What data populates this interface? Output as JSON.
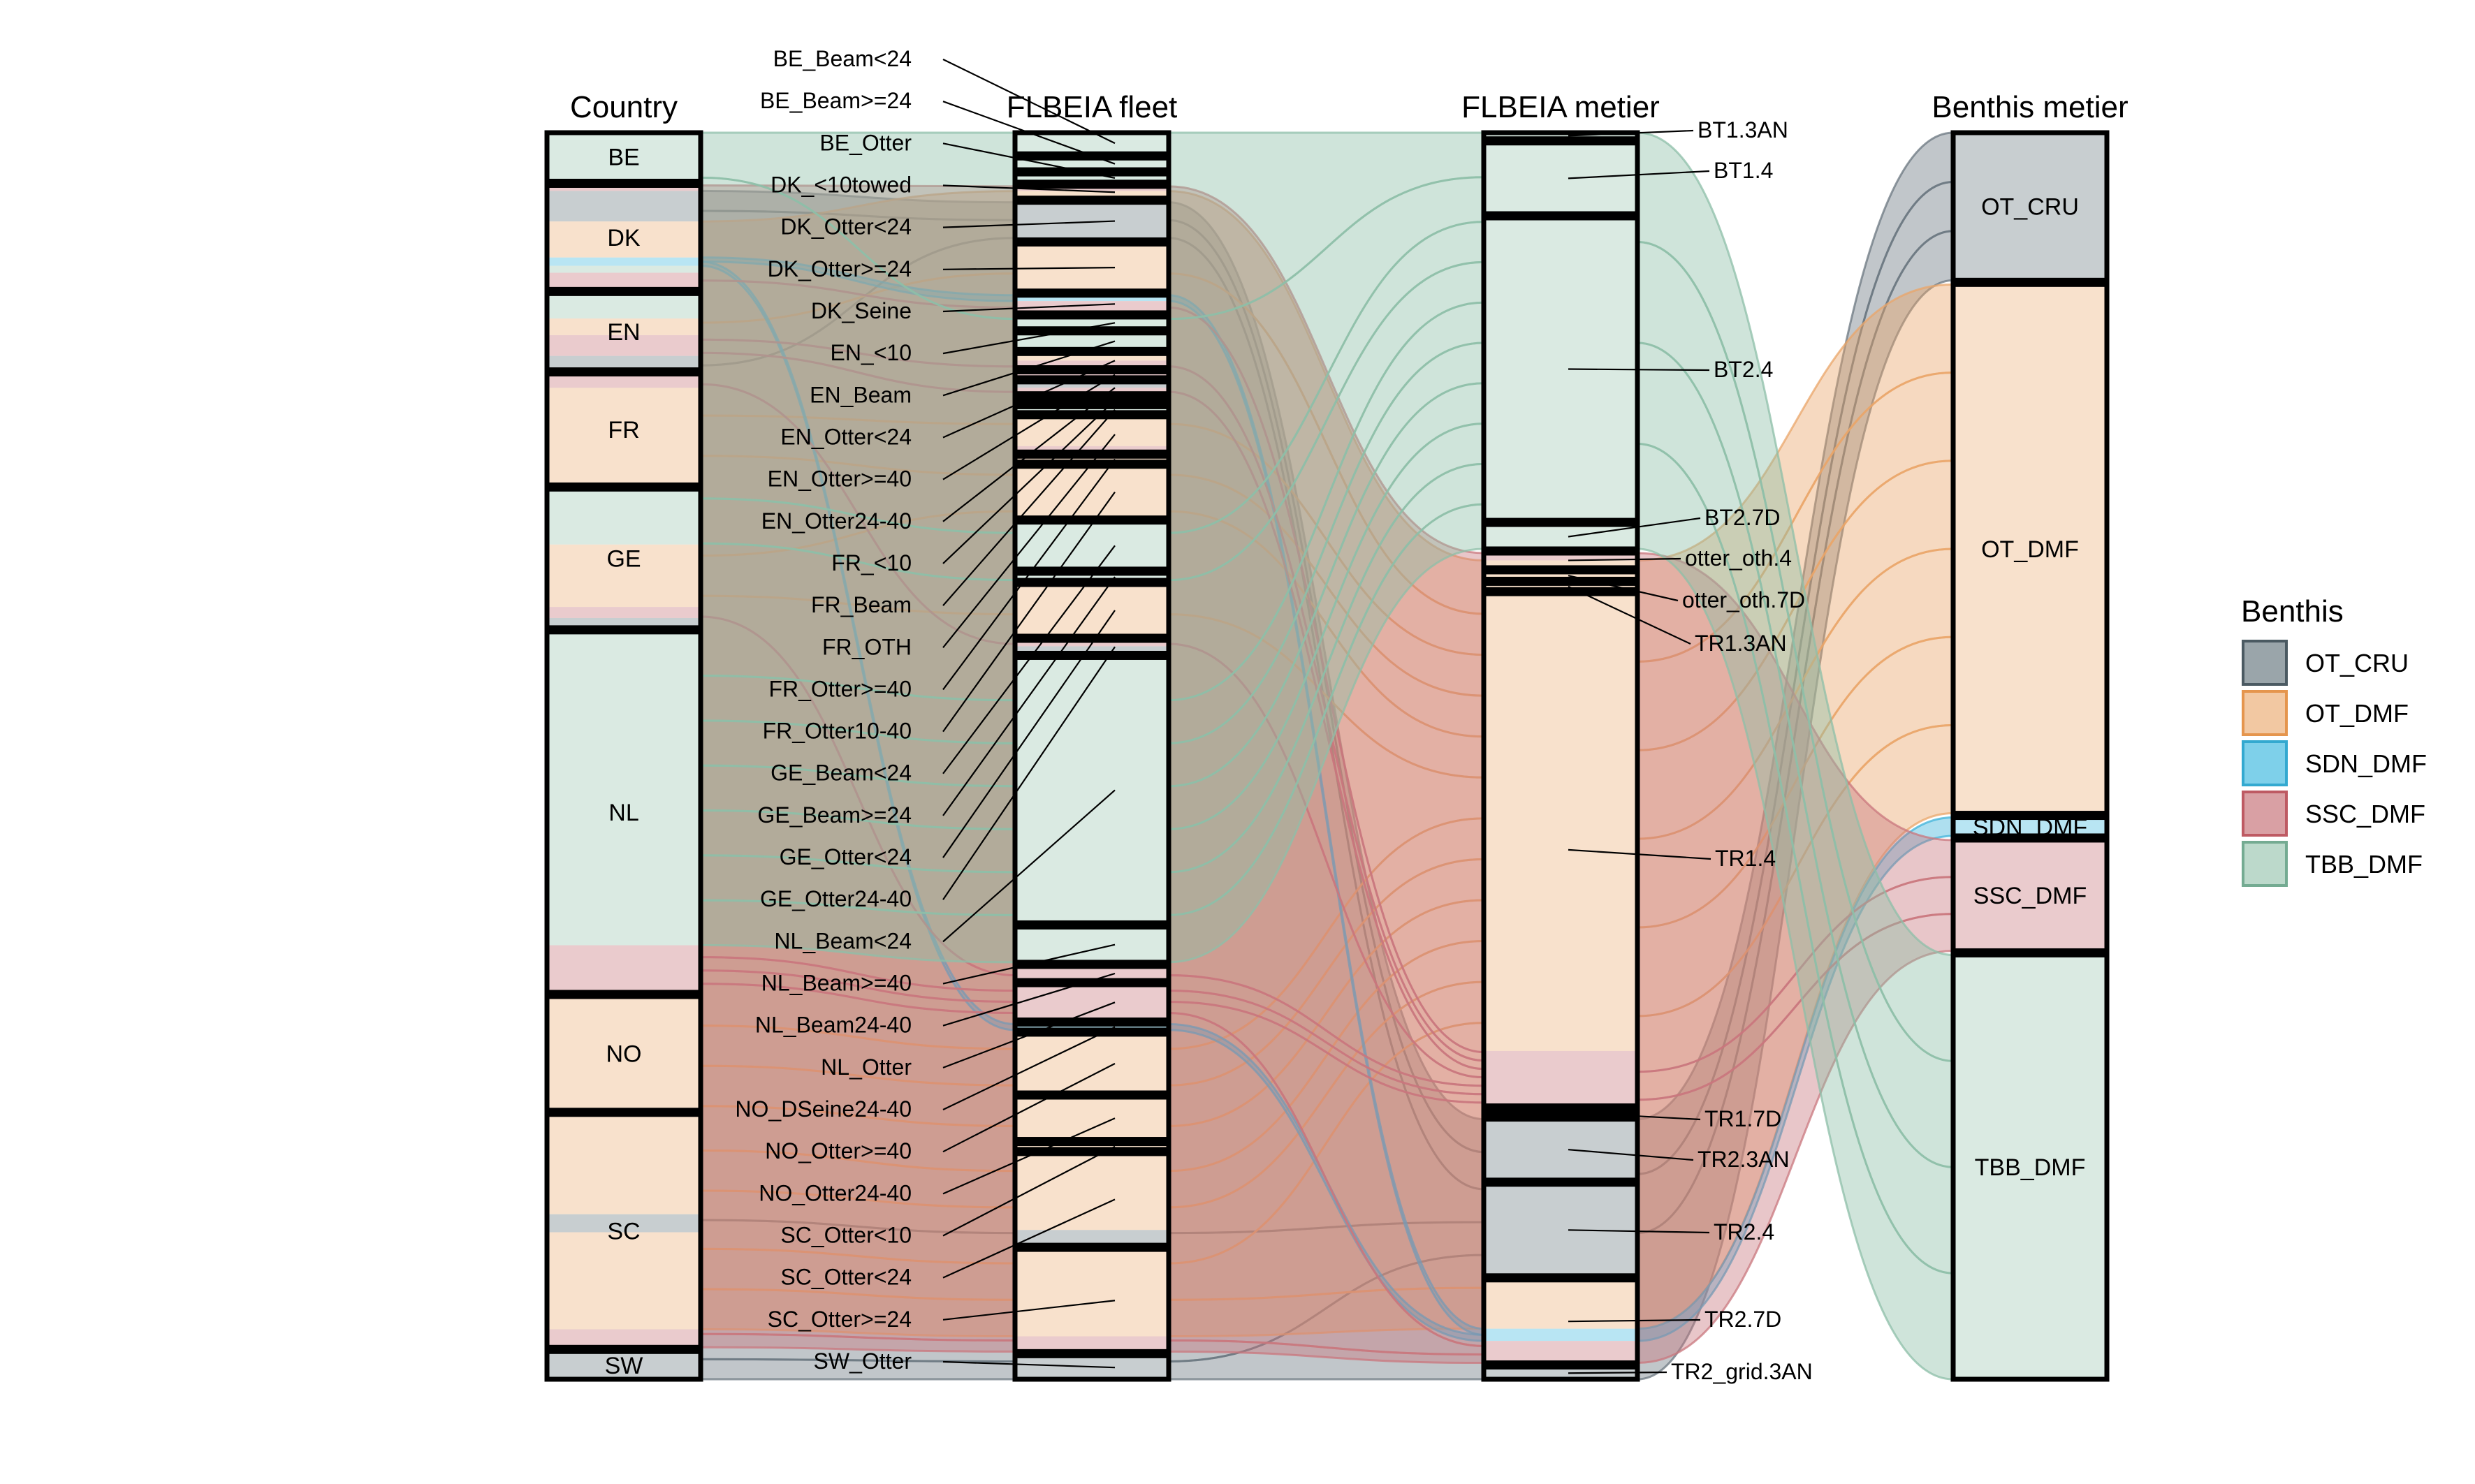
{
  "chart_data": {
    "type": "alluvial",
    "axes": [
      "Country",
      "FLBEIA fleet",
      "FLBEIA metier",
      "Benthis metier"
    ],
    "legend": {
      "title": "Benthis",
      "items": [
        {
          "name": "OT_CRU",
          "fill": "#9AA5AA",
          "stroke": "#4B5A62"
        },
        {
          "name": "OT_DMF",
          "fill": "#F2C8A2",
          "stroke": "#E5954D"
        },
        {
          "name": "SDN_DMF",
          "fill": "#7ED0EA",
          "stroke": "#33A9D0"
        },
        {
          "name": "SSC_DMF",
          "fill": "#D9A0A4",
          "stroke": "#BE5A63"
        },
        {
          "name": "TBB_DMF",
          "fill": "#BCD9CB",
          "stroke": "#74AB92"
        }
      ],
      "placement": "right"
    },
    "colors": {
      "OT_CRU": "#6B7780",
      "OT_DMF": "#E9A56A",
      "SDN_DMF": "#3FB3DA",
      "SSC_DMF": "#C9777E",
      "TBB_DMF": "#8DBFA8"
    },
    "strata": {
      "Country": [
        {
          "label": "BE",
          "size": 3.5,
          "mix": {
            "TBB_DMF": 3.5
          }
        },
        {
          "label": "DK",
          "size": 7.5,
          "mix": {
            "SSC_DMF": 0.4,
            "OT_CRU": 2.2,
            "OT_DMF": 2.6,
            "SDN_DMF": 0.6,
            "TBB_DMF": 0.5,
            "SSC_DMF_b": 1.2
          }
        },
        {
          "label": "EN",
          "size": 5.5,
          "mix": {
            "TBB_DMF": 1.8,
            "OT_DMF": 1.2,
            "SSC_DMF": 1.5,
            "OT_CRU": 1.0
          }
        },
        {
          "label": "FR",
          "size": 8.0,
          "mix": {
            "SSC_DMF": 1.0,
            "OT_DMF": 7.0
          }
        },
        {
          "label": "GE",
          "size": 10.0,
          "mix": {
            "TBB_DMF": 4.0,
            "OT_DMF": 4.5,
            "SSC_DMF": 0.8,
            "OT_CRU": 0.7
          }
        },
        {
          "label": "NL",
          "size": 26.0,
          "mix": {
            "TBB_DMF": 22.6,
            "SSC_DMF": 3.4
          }
        },
        {
          "label": "NO",
          "size": 8.2,
          "mix": {
            "OT_DMF": 8.2
          }
        },
        {
          "label": "SC",
          "size": 16.8,
          "mix": {
            "OT_DMF": 7.2,
            "OT_CRU": 1.3,
            "OT_DMF_b": 7.0,
            "SSC_DMF": 1.3
          }
        },
        {
          "label": "SW",
          "size": 2.0,
          "mix": {
            "OT_CRU": 2.0
          }
        }
      ],
      "FLBEIA fleet": [
        {
          "label": "BE_Beam<24",
          "size": 1.8,
          "mix": {
            "TBB_DMF": 1.8
          }
        },
        {
          "label": "BE_Beam>=24",
          "size": 1.0,
          "mix": {
            "TBB_DMF": 1.0
          }
        },
        {
          "label": "BE_Otter",
          "size": 0.7,
          "mix": {
            "TBB_DMF": 0.7
          }
        },
        {
          "label": "DK_<10towed",
          "size": 1.0,
          "mix": {
            "SSC_DMF": 0.4,
            "OT_DMF": 0.6
          }
        },
        {
          "label": "DK_Otter<24",
          "size": 3.2,
          "mix": {
            "OT_CRU": 3.2
          }
        },
        {
          "label": "DK_Otter>=24",
          "size": 4.0,
          "mix": {
            "OT_DMF": 4.0
          }
        },
        {
          "label": "DK_Seine",
          "size": 1.5,
          "mix": {
            "SDN_DMF": 0.5,
            "SSC_DMF": 1.0
          }
        },
        {
          "label": "EN_<10",
          "size": 1.0,
          "mix": {
            "TBB_DMF": 1.0
          }
        },
        {
          "label": "EN_Beam",
          "size": 1.4,
          "mix": {
            "TBB_DMF": 1.4
          }
        },
        {
          "label": "EN_Otter<24",
          "size": 1.2,
          "mix": {
            "OT_DMF": 0.6,
            "SSC_DMF": 0.6
          }
        },
        {
          "label": "EN_Otter>=40",
          "size": 0.5,
          "mix": {
            "SSC_DMF": 0.5
          }
        },
        {
          "label": "EN_Otter24-40",
          "size": 1.0,
          "mix": {
            "OT_CRU": 0.5,
            "SSC_DMF": 0.5
          }
        },
        {
          "label": "FR_<10",
          "size": 0.4,
          "mix": {
            "OT_DMF": 0.4
          }
        },
        {
          "label": "FR_Beam",
          "size": 0.5,
          "mix": {
            "TBB_DMF": 0.5
          }
        },
        {
          "label": "FR_OTH",
          "size": 3.0,
          "mix": {
            "OT_DMF": 2.5,
            "SSC_DMF": 0.5
          }
        },
        {
          "label": "FR_Otter>=40",
          "size": 0.5,
          "mix": {
            "OT_DMF": 0.5
          }
        },
        {
          "label": "FR_Otter10-40",
          "size": 4.4,
          "mix": {
            "OT_DMF": 4.4
          }
        },
        {
          "label": "GE_Beam<24",
          "size": 4.0,
          "mix": {
            "TBB_DMF": 4.0
          }
        },
        {
          "label": "GE_Beam>=24",
          "size": 0.6,
          "mix": {
            "TBB_DMF": 0.6
          }
        },
        {
          "label": "GE_Otter<24",
          "size": 4.4,
          "mix": {
            "OT_DMF": 4.4
          }
        },
        {
          "label": "GE_Otter24-40",
          "size": 1.1,
          "mix": {
            "SSC_DMF": 0.5,
            "OT_CRU": 0.6
          }
        },
        {
          "label": "NL_Beam<24",
          "size": 22.6,
          "mix": {
            "TBB_DMF": 22.6
          }
        },
        {
          "label": "NL_Beam>=40",
          "size": 3.0,
          "mix": {
            "TBB_DMF": 3.0
          }
        },
        {
          "label": "NL_Beam24-40",
          "size": 1.2,
          "mix": {
            "SSC_DMF": 1.2
          }
        },
        {
          "label": "NL_Otter",
          "size": 3.0,
          "mix": {
            "SSC_DMF": 3.0
          }
        },
        {
          "label": "NO_DSeine24-40",
          "size": 0.5,
          "mix": {
            "SDN_DMF": 0.5
          }
        },
        {
          "label": "NO_Otter>=40",
          "size": 5.0,
          "mix": {
            "OT_DMF": 5.0
          }
        },
        {
          "label": "NO_Otter24-40",
          "size": 3.6,
          "mix": {
            "OT_DMF": 3.6
          }
        },
        {
          "label": "SC_Otter<10",
          "size": 0.5,
          "mix": {
            "OT_DMF": 0.5
          }
        },
        {
          "label": "SC_Otter<24",
          "size": 7.8,
          "mix": {
            "OT_DMF": 6.5,
            "OT_CRU": 1.3
          }
        },
        {
          "label": "SC_Otter>=24",
          "size": 8.7,
          "mix": {
            "OT_DMF": 7.4,
            "SSC_DMF": 1.3
          }
        },
        {
          "label": "SW_Otter",
          "size": 2.0,
          "mix": {
            "OT_CRU": 2.0
          }
        }
      ],
      "FLBEIA metier": [
        {
          "label": "BT1.3AN",
          "size": 0.5,
          "mix": {
            "TBB_DMF": 0.5
          }
        },
        {
          "label": "BT1.4",
          "size": 5.8,
          "mix": {
            "TBB_DMF": 5.8
          }
        },
        {
          "label": "BT2.4",
          "size": 24.8,
          "mix": {
            "TBB_DMF": 24.8
          }
        },
        {
          "label": "BT2.7D",
          "size": 2.0,
          "mix": {
            "TBB_DMF": 2.0
          }
        },
        {
          "label": "otter_oth.4",
          "size": 1.2,
          "mix": {
            "SSC_DMF": 0.6,
            "OT_DMF": 0.6
          }
        },
        {
          "label": "otter_oth.7D",
          "size": 0.6,
          "mix": {
            "OT_DMF": 0.6
          }
        },
        {
          "label": "TR1.3AN",
          "size": 0.5,
          "mix": {
            "OT_DMF": 0.5
          }
        },
        {
          "label": "TR1.4",
          "size": 42.0,
          "mix": {
            "OT_DMF": 37.5,
            "SSC_DMF": 4.5
          }
        },
        {
          "label": "TR1.7D",
          "size": 0.4,
          "mix": {
            "OT_DMF": 0.4
          }
        },
        {
          "label": "TR2.3AN",
          "size": 5.0,
          "mix": {
            "OT_CRU": 5.0
          }
        },
        {
          "label": "TR2.4",
          "size": 7.5,
          "mix": {
            "OT_CRU": 7.5
          }
        },
        {
          "label": "TR2.7D",
          "size": 6.8,
          "mix": {
            "OT_DMF": 4.0,
            "SDN_DMF": 1.0,
            "SSC_DMF": 1.8
          }
        },
        {
          "label": "TR2_grid.3AN",
          "size": 1.0,
          "mix": {
            "OT_CRU": 1.0
          }
        }
      ],
      "Benthis metier": [
        {
          "label": "OT_CRU",
          "size": 12.0,
          "mix": {
            "OT_CRU": 12.0
          }
        },
        {
          "label": "OT_DMF",
          "size": 43.0,
          "mix": {
            "OT_DMF": 43.0
          }
        },
        {
          "label": "SDN_DMF",
          "size": 1.5,
          "mix": {
            "SDN_DMF": 1.5
          }
        },
        {
          "label": "SSC_DMF",
          "size": 9.0,
          "mix": {
            "SSC_DMF": 9.0
          }
        },
        {
          "label": "TBB_DMF",
          "size": 34.5,
          "mix": {
            "TBB_DMF": 34.5
          }
        }
      ]
    },
    "stratum_labels_inside": {
      "Country": [
        "BE",
        "DK",
        "EN",
        "FR",
        "GE",
        "NL",
        "NO",
        "SC",
        "SW"
      ],
      "Benthis metier": [
        "OT_CRU",
        "OT_DMF",
        "SDN_DMF",
        "SSC_DMF",
        "TBB_DMF"
      ]
    },
    "stratum_labels_callout": {
      "FLBEIA fleet": [
        "BE_Beam<24",
        "BE_Beam>=24",
        "BE_Otter",
        "DK_<10towed",
        "DK_Otter<24",
        "DK_Otter>=24",
        "DK_Seine",
        "EN_<10",
        "EN_Beam",
        "EN_Otter<24",
        "EN_Otter>=40",
        "EN_Otter24-40",
        "FR_<10",
        "FR_Beam",
        "FR_OTH",
        "FR_Otter>=40",
        "FR_Otter10-40",
        "GE_Beam<24",
        "GE_Beam>=24",
        "GE_Otter<24",
        "GE_Otter24-40",
        "NL_Beam<24",
        "NL_Beam>=40",
        "NL_Beam24-40",
        "NL_Otter",
        "NO_DSeine24-40",
        "NO_Otter>=40",
        "NO_Otter24-40",
        "SC_Otter<10",
        "SC_Otter<24",
        "SC_Otter>=24",
        "SW_Otter"
      ],
      "FLBEIA metier": [
        "BT1.3AN",
        "BT1.4",
        "BT2.4",
        "BT2.7D",
        "otter_oth.4",
        "otter_oth.7D",
        "TR1.3AN",
        "TR1.4",
        "TR1.7D",
        "TR2.3AN",
        "TR2.4",
        "TR2.7D",
        "TR2_grid.3AN"
      ]
    }
  }
}
